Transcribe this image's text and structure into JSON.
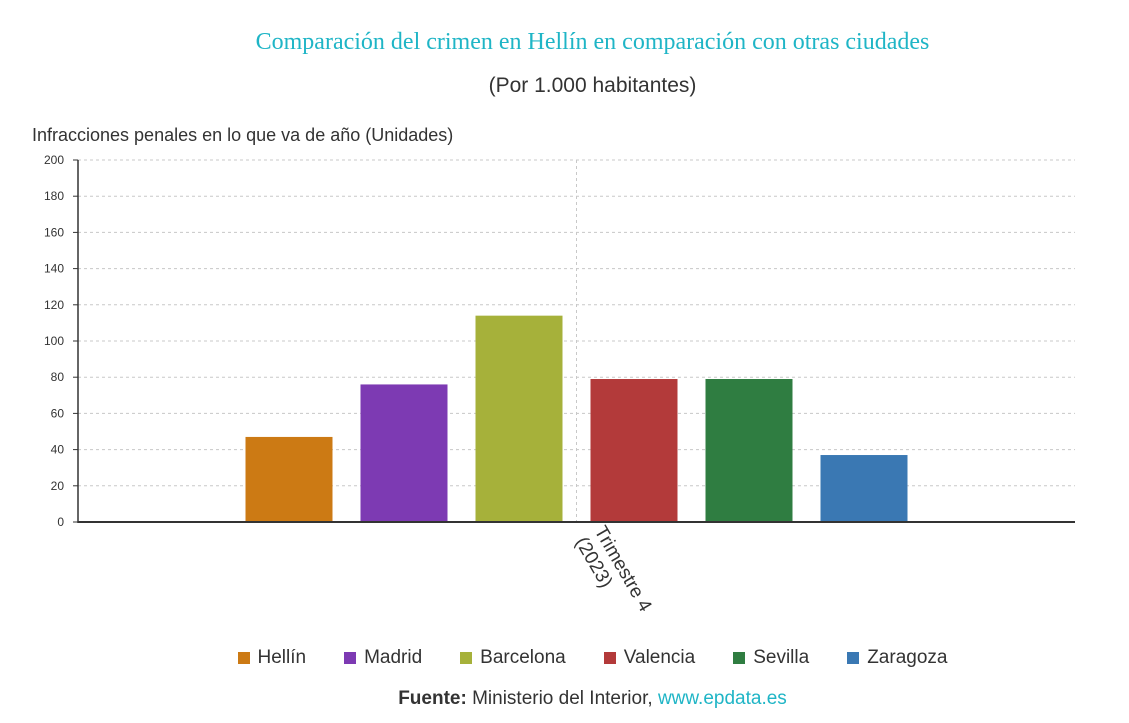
{
  "chart_data": {
    "type": "bar",
    "title": "Comparación del crimen en Hellín en comparación con otras ciudades",
    "subtitle": "(Por 1.000 habitantes)",
    "ylabel": "Infracciones penales en lo que va de año (Unidades)",
    "categories": [
      "Trimestre 4 (2023)"
    ],
    "category_label_lines": [
      "Trimestre 4",
      "(2023)"
    ],
    "ylim": [
      0,
      200
    ],
    "yticks": [
      0,
      20,
      40,
      60,
      80,
      100,
      120,
      140,
      160,
      180,
      200
    ],
    "grid": true,
    "legend_placement": "bottom",
    "series": [
      {
        "name": "Hellín",
        "values": [
          47
        ],
        "color": "#cc7a14"
      },
      {
        "name": "Madrid",
        "values": [
          76
        ],
        "color": "#7d3ab3"
      },
      {
        "name": "Barcelona",
        "values": [
          114
        ],
        "color": "#a6b13a"
      },
      {
        "name": "Valencia",
        "values": [
          79
        ],
        "color": "#b33a3a"
      },
      {
        "name": "Sevilla",
        "values": [
          79
        ],
        "color": "#2f7d41"
      },
      {
        "name": "Zaragoza",
        "values": [
          37
        ],
        "color": "#3a78b3"
      }
    ]
  },
  "source": {
    "label": "Fuente:",
    "text": "Ministerio del Interior,",
    "link": "www.epdata.es"
  }
}
